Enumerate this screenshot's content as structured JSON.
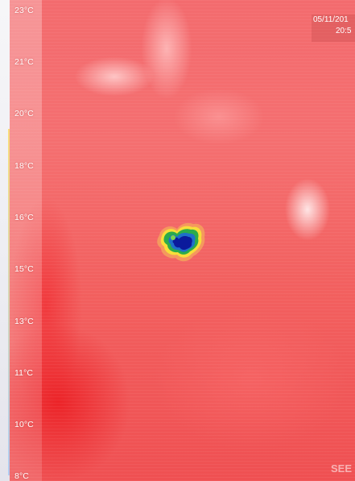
{
  "scale": {
    "unit": "°C",
    "ticks": [
      "23°C",
      "21°C",
      "20°C",
      "18°C",
      "16°C",
      "15°C",
      "13°C",
      "11°C",
      "10°C",
      "8°C"
    ]
  },
  "timestamp": {
    "date": "05/11/201",
    "time": "20:5"
  },
  "watermark": "SEE",
  "colors": {
    "background_red": "#f36b6e",
    "cold_spot_core": "#0b1a9c",
    "cold_spot_mid": "#1fa44a",
    "cold_spot_edge": "#f6e03a"
  }
}
